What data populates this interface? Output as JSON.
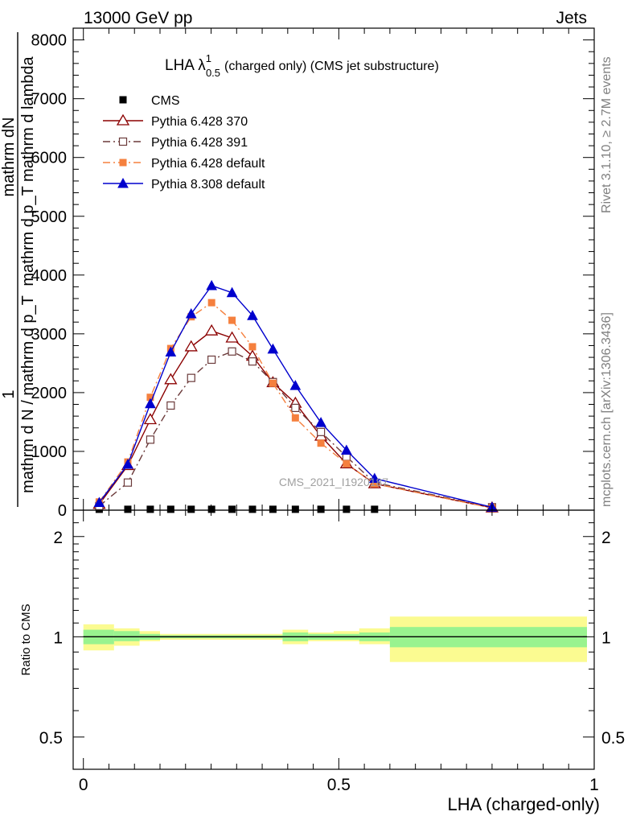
{
  "header": {
    "left": "13000 GeV pp",
    "right": "Jets"
  },
  "side_labels": {
    "rivet": "Rivet 3.1.10, ≥ 2.7M events",
    "mcplots": "mcplots.cern.ch [arXiv:1306.3436]"
  },
  "chart_data": [
    {
      "type": "line",
      "title_main": "LHA λ",
      "title_sup": "1",
      "title_sub": "0.5",
      "title_rest": "(charged only) (CMS jet substructure)",
      "watermark": "CMS_2021_I1920187",
      "xlabel": "",
      "ylabel_numerator": "mathrm dN",
      "ylabel_numerator2": "mathrm d p_T mathrm d lambda",
      "ylabel_one": "1",
      "ylabel_denominator": "mathrm d N / mathrm d p_T",
      "ylim": [
        0,
        8200
      ],
      "xlim": [
        -0.02,
        1.0
      ],
      "yticks": [
        0,
        1000,
        2000,
        3000,
        4000,
        5000,
        6000,
        7000,
        8000
      ],
      "ytick_labels": [
        "0",
        "1000",
        "2000",
        "3000",
        "4000",
        "5000",
        "6000",
        "7000",
        "8000"
      ],
      "legend_position": "top-left",
      "series": [
        {
          "name": "CMS",
          "color": "#000000",
          "marker": "square-filled",
          "line": "none",
          "x": [
            0.031,
            0.087,
            0.131,
            0.171,
            0.211,
            0.251,
            0.291,
            0.331,
            0.371,
            0.415,
            0.465,
            0.515,
            0.57
          ],
          "y": [
            15,
            15,
            15,
            15,
            15,
            15,
            15,
            15,
            15,
            15,
            15,
            15,
            15
          ]
        },
        {
          "name": "Pythia 6.428 370",
          "color": "#8b0000",
          "marker": "triangle-open",
          "line": "solid",
          "x": [
            0.031,
            0.087,
            0.131,
            0.171,
            0.211,
            0.251,
            0.291,
            0.331,
            0.371,
            0.415,
            0.465,
            0.515,
            0.57,
            0.8
          ],
          "y": [
            100,
            760,
            1540,
            2220,
            2780,
            3050,
            2930,
            2620,
            2170,
            1820,
            1260,
            790,
            450,
            40
          ]
        },
        {
          "name": "Pythia 6.428 391",
          "color": "#6b3a3a",
          "marker": "square-open",
          "line": "dashdot",
          "x": [
            0.031,
            0.087,
            0.131,
            0.171,
            0.211,
            0.251,
            0.291,
            0.331,
            0.371,
            0.415,
            0.465,
            0.515,
            0.57,
            0.8
          ],
          "y": [
            70,
            470,
            1200,
            1780,
            2250,
            2560,
            2700,
            2530,
            2180,
            1740,
            1330,
            910,
            470,
            50
          ]
        },
        {
          "name": "Pythia 6.428 default",
          "color": "#f5803e",
          "marker": "square-filled",
          "line": "dashdot",
          "x": [
            0.031,
            0.087,
            0.131,
            0.171,
            0.211,
            0.251,
            0.291,
            0.331,
            0.371,
            0.415,
            0.465,
            0.515,
            0.57,
            0.8
          ],
          "y": [
            140,
            820,
            1920,
            2750,
            3290,
            3530,
            3230,
            2780,
            2160,
            1570,
            1140,
            790,
            450,
            40
          ]
        },
        {
          "name": "Pythia 8.308 default",
          "color": "#0000cd",
          "marker": "triangle-filled",
          "line": "solid",
          "x": [
            0.031,
            0.087,
            0.131,
            0.171,
            0.211,
            0.251,
            0.291,
            0.331,
            0.371,
            0.415,
            0.465,
            0.515,
            0.57,
            0.8
          ],
          "y": [
            130,
            780,
            1810,
            2690,
            3340,
            3820,
            3700,
            3310,
            2740,
            2120,
            1490,
            1020,
            540,
            50
          ]
        }
      ]
    },
    {
      "type": "area",
      "xlabel": "LHA (charged-only)",
      "ylabel": "Ratio to CMS",
      "ylim": [
        0.4,
        2.4
      ],
      "yscale": "log",
      "xlim": [
        -0.02,
        1.0
      ],
      "xticks": [
        0,
        0.5,
        1
      ],
      "xtick_labels": [
        "0",
        "0.5",
        "1"
      ],
      "yticks": [
        0.5,
        1,
        2
      ],
      "ytick_labels": [
        "0.5",
        "1",
        "2"
      ],
      "reference_line": 1,
      "bins": [
        {
          "xlo": 0.0,
          "xhi": 0.06,
          "inner": [
            0.95,
            1.05
          ],
          "outer": [
            0.91,
            1.09
          ]
        },
        {
          "xlo": 0.06,
          "xhi": 0.11,
          "inner": [
            0.97,
            1.04
          ],
          "outer": [
            0.94,
            1.06
          ]
        },
        {
          "xlo": 0.11,
          "xhi": 0.15,
          "inner": [
            0.98,
            1.02
          ],
          "outer": [
            0.97,
            1.04
          ]
        },
        {
          "xlo": 0.15,
          "xhi": 0.39,
          "inner": [
            0.99,
            1.01
          ],
          "outer": [
            0.98,
            1.02
          ]
        },
        {
          "xlo": 0.39,
          "xhi": 0.44,
          "inner": [
            0.97,
            1.03
          ],
          "outer": [
            0.95,
            1.05
          ]
        },
        {
          "xlo": 0.44,
          "xhi": 0.49,
          "inner": [
            0.98,
            1.02
          ],
          "outer": [
            0.97,
            1.03
          ]
        },
        {
          "xlo": 0.49,
          "xhi": 0.54,
          "inner": [
            0.98,
            1.02
          ],
          "outer": [
            0.97,
            1.04
          ]
        },
        {
          "xlo": 0.54,
          "xhi": 0.6,
          "inner": [
            0.97,
            1.03
          ],
          "outer": [
            0.95,
            1.06
          ]
        },
        {
          "xlo": 0.6,
          "xhi": 1.0,
          "inner": [
            0.93,
            1.07
          ],
          "outer": [
            0.84,
            1.15
          ]
        }
      ],
      "colors": {
        "inner": "#99f38f",
        "outer": "#fbfb91",
        "reference": "#000000"
      }
    }
  ]
}
